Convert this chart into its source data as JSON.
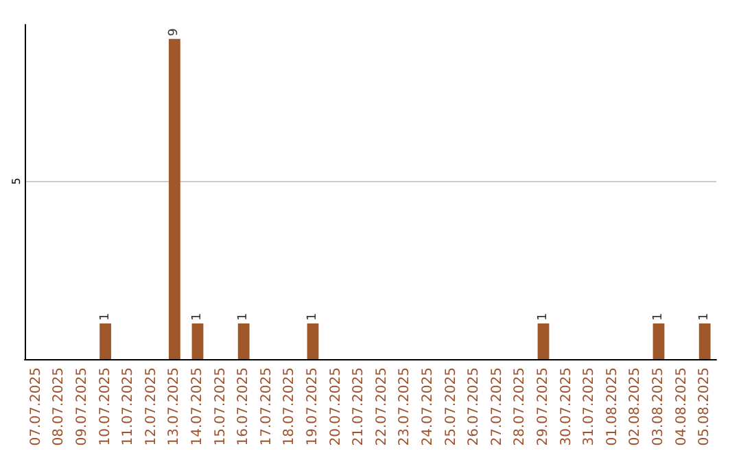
{
  "chart_data": {
    "type": "bar",
    "categories": [
      "07.07.2025",
      "08.07.2025",
      "09.07.2025",
      "10.07.2025",
      "11.07.2025",
      "12.07.2025",
      "13.07.2025",
      "14.07.2025",
      "15.07.2025",
      "16.07.2025",
      "17.07.2025",
      "18.07.2025",
      "19.07.2025",
      "20.07.2025",
      "21.07.2025",
      "22.07.2025",
      "23.07.2025",
      "24.07.2025",
      "25.07.2025",
      "26.07.2025",
      "27.07.2025",
      "28.07.2025",
      "29.07.2025",
      "30.07.2025",
      "31.07.2025",
      "01.08.2025",
      "02.08.2025",
      "03.08.2025",
      "04.08.2025",
      "05.08.2025"
    ],
    "values": [
      0,
      0,
      0,
      1,
      0,
      0,
      9,
      1,
      0,
      1,
      0,
      0,
      1,
      0,
      0,
      0,
      0,
      0,
      0,
      0,
      0,
      0,
      1,
      0,
      0,
      0,
      0,
      1,
      0,
      1
    ],
    "value_labels": [
      null,
      null,
      null,
      "1",
      null,
      null,
      "9",
      "1",
      null,
      "1",
      null,
      null,
      "1",
      null,
      null,
      null,
      null,
      null,
      null,
      null,
      null,
      null,
      "1",
      null,
      null,
      null,
      null,
      "1",
      null,
      "1"
    ],
    "color": "#a0572a",
    "ylim": [
      0,
      9.4
    ],
    "yticks": [
      5
    ],
    "grid": "y"
  }
}
